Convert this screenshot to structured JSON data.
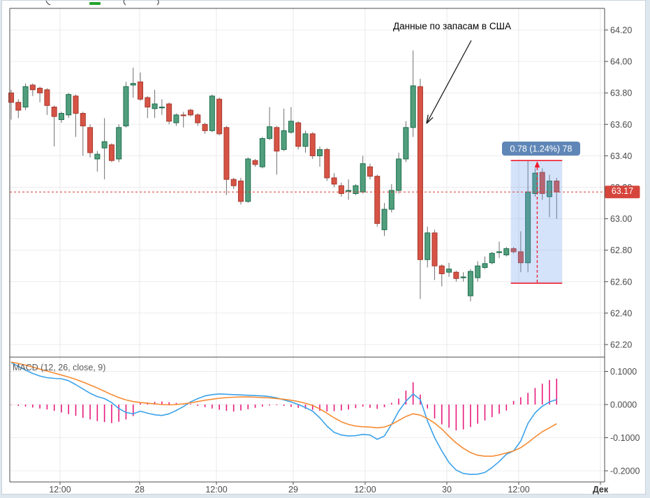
{
  "annotation": {
    "text": "Данные по запасам в США"
  },
  "measure_tool": {
    "label": "0.78 (1.24%) 78",
    "price_high": 63.37,
    "price_low": 62.59,
    "change": 0.78,
    "change_pct": 1.24
  },
  "price_axis": {
    "current_price_label": "63.17",
    "tick_labels": [
      "64.20",
      "64.00",
      "63.80",
      "63.60",
      "63.40",
      "63.20",
      "63.00",
      "62.80",
      "62.60",
      "62.40",
      "62.20"
    ]
  },
  "macd_pane": {
    "label": "MACD (12, 26, close, 9)",
    "tick_labels": [
      "0.1000",
      "0.0000",
      "-0.1000",
      "-0.2000"
    ]
  },
  "time_axis": {
    "labels": [
      "12:00",
      "28",
      "12:00",
      "29",
      "12:00",
      "30",
      "12:00",
      "Дек"
    ]
  },
  "colors": {
    "up_fill": "#519e7d",
    "up_stroke": "#1d6e4c",
    "down_fill": "#d65345",
    "down_stroke": "#a93a2e",
    "wick": "#6f6f6f",
    "grid": "#ececec",
    "frame": "#4d4d4d",
    "macd_line": "#3ba2ea",
    "signal_line": "#f68b33",
    "histogram": "#e8197d",
    "price_line": "#e0392b",
    "price_badge": "#d6453c",
    "measure_fill": "rgba(100,150,235,0.27)",
    "measure_line": "#ef1b2c",
    "measure_badge": "#5f86b7",
    "legend_fragment_green": "#22a32b",
    "legend_fragment_gray": "#555555"
  },
  "chart_data": {
    "type": "candlestick",
    "title": "",
    "grid": true,
    "legend_position": "none",
    "x_axis": {
      "tick_labels": [
        "12:00",
        "28",
        "12:00",
        "29",
        "12:00",
        "30",
        "12:00",
        "Дек"
      ]
    },
    "panes": [
      {
        "name": "price",
        "type": "candlestick",
        "ylim": [
          62.1,
          64.3
        ],
        "yticks": [
          64.2,
          64.0,
          63.8,
          63.6,
          63.4,
          63.2,
          63.0,
          62.8,
          62.6,
          62.4,
          62.2
        ],
        "current_price": 63.17,
        "measure": {
          "from_price": 62.59,
          "to_price": 63.37,
          "label": "0.78 (1.24%) 78",
          "bar_index_from": 70,
          "bar_index_to": 76
        },
        "candles_ohlc": [
          [
            63.8,
            63.82,
            63.63,
            63.74
          ],
          [
            63.74,
            63.76,
            63.64,
            63.69
          ],
          [
            63.71,
            63.86,
            63.69,
            63.84
          ],
          [
            63.85,
            63.86,
            63.78,
            63.82
          ],
          [
            63.83,
            63.84,
            63.74,
            63.8
          ],
          [
            63.82,
            63.83,
            63.66,
            63.72
          ],
          [
            63.71,
            63.72,
            63.46,
            63.65
          ],
          [
            63.63,
            63.68,
            63.61,
            63.67
          ],
          [
            63.66,
            63.8,
            63.64,
            63.79
          ],
          [
            63.78,
            63.79,
            63.52,
            63.67
          ],
          [
            63.67,
            63.68,
            63.4,
            63.59
          ],
          [
            63.58,
            63.6,
            63.39,
            63.42
          ],
          [
            63.38,
            63.43,
            63.3,
            63.41
          ],
          [
            63.45,
            63.64,
            63.25,
            63.49
          ],
          [
            63.47,
            63.48,
            63.36,
            63.37
          ],
          [
            63.38,
            63.6,
            63.36,
            63.58
          ],
          [
            63.59,
            63.87,
            63.58,
            63.84
          ],
          [
            63.85,
            63.96,
            63.77,
            63.86
          ],
          [
            63.87,
            63.93,
            63.75,
            63.76
          ],
          [
            63.77,
            63.78,
            63.64,
            63.71
          ],
          [
            63.7,
            63.82,
            63.64,
            63.73
          ],
          [
            63.71,
            63.76,
            63.66,
            63.71
          ],
          [
            63.73,
            63.74,
            63.6,
            63.62
          ],
          [
            63.61,
            63.67,
            63.59,
            63.66
          ],
          [
            63.66,
            63.68,
            63.58,
            63.655
          ],
          [
            63.69,
            63.7,
            63.65,
            63.66
          ],
          [
            63.66,
            63.67,
            63.59,
            63.61
          ],
          [
            63.6,
            63.61,
            63.54,
            63.56
          ],
          [
            63.56,
            63.79,
            63.55,
            63.78
          ],
          [
            63.76,
            63.77,
            63.53,
            63.54
          ],
          [
            63.58,
            63.59,
            63.15,
            63.25
          ],
          [
            63.25,
            63.26,
            63.19,
            63.21
          ],
          [
            63.24,
            63.26,
            63.09,
            63.11
          ],
          [
            63.11,
            63.39,
            63.1,
            63.38
          ],
          [
            63.37,
            63.38,
            63.33,
            63.345
          ],
          [
            63.33,
            63.52,
            63.32,
            63.51
          ],
          [
            63.51,
            63.71,
            63.5,
            63.585
          ],
          [
            63.58,
            63.59,
            63.28,
            63.43
          ],
          [
            63.44,
            63.7,
            63.43,
            63.56
          ],
          [
            63.55,
            63.71,
            63.54,
            63.62
          ],
          [
            63.61,
            63.62,
            63.44,
            63.46
          ],
          [
            63.46,
            63.56,
            63.42,
            63.54
          ],
          [
            63.54,
            63.55,
            63.38,
            63.4
          ],
          [
            63.4,
            63.46,
            63.33,
            63.44
          ],
          [
            63.44,
            63.45,
            63.24,
            63.26
          ],
          [
            63.26,
            63.29,
            63.2,
            63.22
          ],
          [
            63.21,
            63.23,
            63.14,
            63.16
          ],
          [
            63.18,
            63.25,
            63.12,
            63.18
          ],
          [
            63.16,
            63.22,
            63.15,
            63.21
          ],
          [
            63.17,
            63.4,
            63.16,
            63.35
          ],
          [
            63.33,
            63.35,
            63.25,
            63.27
          ],
          [
            63.27,
            63.28,
            62.95,
            62.97
          ],
          [
            62.93,
            63.1,
            62.89,
            63.06
          ],
          [
            63.06,
            63.22,
            63.04,
            63.18
          ],
          [
            63.18,
            63.42,
            63.16,
            63.38
          ],
          [
            63.38,
            63.62,
            63.36,
            63.58
          ],
          [
            63.58,
            64.07,
            63.52,
            63.845
          ],
          [
            63.84,
            63.89,
            62.49,
            62.74
          ],
          [
            62.74,
            62.95,
            62.69,
            62.91
          ],
          [
            62.91,
            62.93,
            62.61,
            62.7
          ],
          [
            62.7,
            62.71,
            62.57,
            62.65
          ],
          [
            62.66,
            62.72,
            62.63,
            62.68
          ],
          [
            62.66,
            62.67,
            62.6,
            62.62
          ],
          [
            62.63,
            62.66,
            62.6,
            62.63
          ],
          [
            62.51,
            62.68,
            62.475,
            62.665
          ],
          [
            62.625,
            62.73,
            62.6,
            62.7
          ],
          [
            62.69,
            62.76,
            62.68,
            62.715
          ],
          [
            62.72,
            62.79,
            62.71,
            62.78
          ],
          [
            62.79,
            62.855,
            62.75,
            62.79
          ],
          [
            62.77,
            62.82,
            62.76,
            62.81
          ],
          [
            62.81,
            62.82,
            62.78,
            62.79
          ],
          [
            62.79,
            62.92,
            62.66,
            62.72
          ],
          [
            62.72,
            63.37,
            62.66,
            63.17
          ],
          [
            63.16,
            63.32,
            63.14,
            63.29
          ],
          [
            63.295,
            63.32,
            63.12,
            63.16
          ],
          [
            63.14,
            63.28,
            63.01,
            63.24
          ],
          [
            63.24,
            63.26,
            63.0,
            63.17
          ]
        ]
      },
      {
        "name": "macd",
        "type": "macd",
        "params": "12, 26, close, 9",
        "ylim": [
          -0.24,
          0.14
        ],
        "yticks": [
          0.1,
          0.0,
          -0.1,
          -0.2
        ],
        "macd": [
          0.127,
          0.115,
          0.104,
          0.094,
          0.086,
          0.081,
          0.079,
          0.078,
          0.072,
          0.06,
          0.047,
          0.034,
          0.024,
          0.018,
          0.006,
          -0.012,
          -0.024,
          -0.028,
          -0.02,
          -0.026,
          -0.031,
          -0.033,
          -0.028,
          -0.018,
          -0.006,
          0.008,
          0.018,
          0.026,
          0.03,
          0.032,
          0.031,
          0.03,
          0.029,
          0.028,
          0.027,
          0.026,
          0.024,
          0.02,
          0.014,
          0.008,
          0.0,
          -0.009,
          -0.02,
          -0.04,
          -0.065,
          -0.084,
          -0.092,
          -0.095,
          -0.094,
          -0.09,
          -0.092,
          -0.105,
          -0.095,
          -0.06,
          -0.02,
          0.01,
          0.032,
          0.015,
          -0.049,
          -0.1,
          -0.14,
          -0.175,
          -0.198,
          -0.208,
          -0.211,
          -0.21,
          -0.205,
          -0.19,
          -0.172,
          -0.15,
          -0.14,
          -0.11,
          -0.057,
          -0.025,
          -0.005,
          0.008,
          0.015
        ],
        "signal": [
          0.128,
          0.124,
          0.119,
          0.113,
          0.107,
          0.101,
          0.095,
          0.089,
          0.083,
          0.076,
          0.068,
          0.059,
          0.05,
          0.04,
          0.03,
          0.021,
          0.014,
          0.009,
          0.006,
          0.004,
          0.002,
          0.0,
          -0.001,
          0.0,
          0.002,
          0.005,
          0.009,
          0.013,
          0.016,
          0.019,
          0.021,
          0.022,
          0.023,
          0.023,
          0.022,
          0.021,
          0.02,
          0.018,
          0.016,
          0.013,
          0.009,
          0.004,
          -0.003,
          -0.013,
          -0.026,
          -0.04,
          -0.052,
          -0.06,
          -0.065,
          -0.067,
          -0.068,
          -0.07,
          -0.068,
          -0.06,
          -0.048,
          -0.036,
          -0.028,
          -0.032,
          -0.042,
          -0.056,
          -0.074,
          -0.096,
          -0.116,
          -0.132,
          -0.145,
          -0.153,
          -0.156,
          -0.156,
          -0.152,
          -0.146,
          -0.14,
          -0.13,
          -0.115,
          -0.098,
          -0.082,
          -0.07,
          -0.058
        ],
        "histogram": [
          -0.001,
          -0.004,
          -0.006,
          -0.009,
          -0.012,
          -0.015,
          -0.019,
          -0.024,
          -0.029,
          -0.034,
          -0.04,
          -0.045,
          -0.05,
          -0.053,
          -0.056,
          -0.052,
          -0.045,
          -0.035,
          0.004,
          0.006,
          0.008,
          0.009,
          0.007,
          0.005,
          0.003,
          0.002,
          -0.004,
          -0.008,
          -0.012,
          -0.016,
          -0.019,
          -0.021,
          -0.018,
          -0.014,
          -0.01,
          -0.006,
          -0.003,
          -0.002,
          -0.004,
          -0.007,
          -0.01,
          -0.013,
          -0.016,
          -0.019,
          -0.021,
          -0.02,
          -0.018,
          -0.015,
          -0.011,
          -0.006,
          -0.01,
          -0.013,
          -0.008,
          0.005,
          0.018,
          0.042,
          0.067,
          0.03,
          -0.012,
          -0.042,
          -0.06,
          -0.07,
          -0.078,
          -0.075,
          -0.068,
          -0.058,
          -0.048,
          -0.038,
          -0.028,
          -0.018,
          0.011,
          0.022,
          0.035,
          0.05,
          0.063,
          0.074,
          0.078
        ]
      }
    ]
  }
}
